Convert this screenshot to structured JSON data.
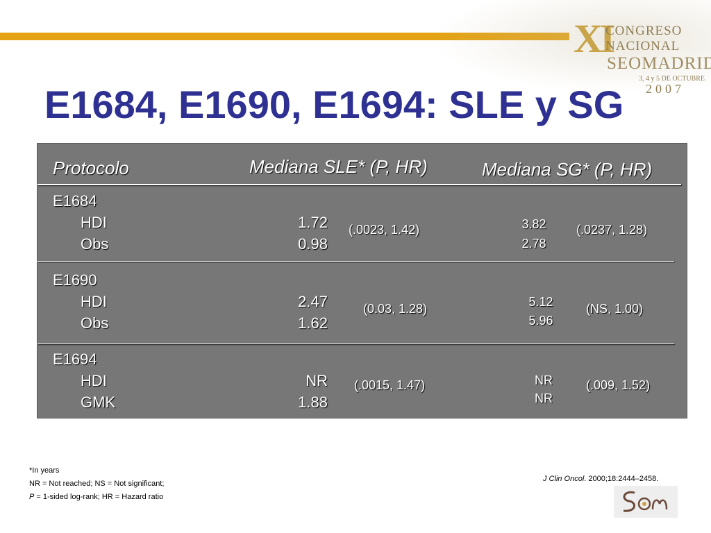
{
  "slide": {
    "title": "E1684, E1690, E1694: SLE y SG"
  },
  "conference_logo": {
    "numeral": "XI",
    "line1": "CONGRESO",
    "line2": "NACIONAL",
    "line3": "SEOMADRID",
    "dates": "3, 4 y 5 DE OCTUBRE",
    "year": "2007"
  },
  "table": {
    "headers": {
      "protocol": "Protocolo",
      "sle": "Mediana SLE*  (P, HR)",
      "sg": "Mediana SG*  (P, HR)"
    },
    "groups": [
      {
        "protocol": "E1684",
        "arms": [
          "HDI",
          "Obs"
        ],
        "sle_values": [
          "1.72",
          "0.98"
        ],
        "sle_stats": "(.0023, 1.42)",
        "sg_values": [
          "3.82",
          "2.78"
        ],
        "sg_stats": "(.0237, 1.28)"
      },
      {
        "protocol": "E1690",
        "arms": [
          "HDI",
          "Obs"
        ],
        "sle_values": [
          "2.47",
          "1.62"
        ],
        "sle_stats": "(0.03, 1.28)",
        "sg_values": [
          "5.12",
          "5.96"
        ],
        "sg_stats": "(NS, 1.00)"
      },
      {
        "protocol": "E1694",
        "arms": [
          "HDI",
          "GMK"
        ],
        "sle_values": [
          "NR",
          "1.88"
        ],
        "sle_stats": "(.0015, 1.47)",
        "sg_values": [
          "NR",
          "NR"
        ],
        "sg_stats": "(.009, 1.52)"
      }
    ]
  },
  "footnotes": {
    "line1": "*In years",
    "line2": "NR = Not reached; NS = Not significant;",
    "line3_p": "P",
    "line3_rest": " = 1-sided log-rank; HR = Hazard ratio"
  },
  "reference": {
    "journal": "J Clin Oncol",
    "citation": ". 2000;18:2444–2458."
  },
  "colors": {
    "title": "#2e3192",
    "accent_bar": "#e3a214",
    "panel": "#777777"
  }
}
